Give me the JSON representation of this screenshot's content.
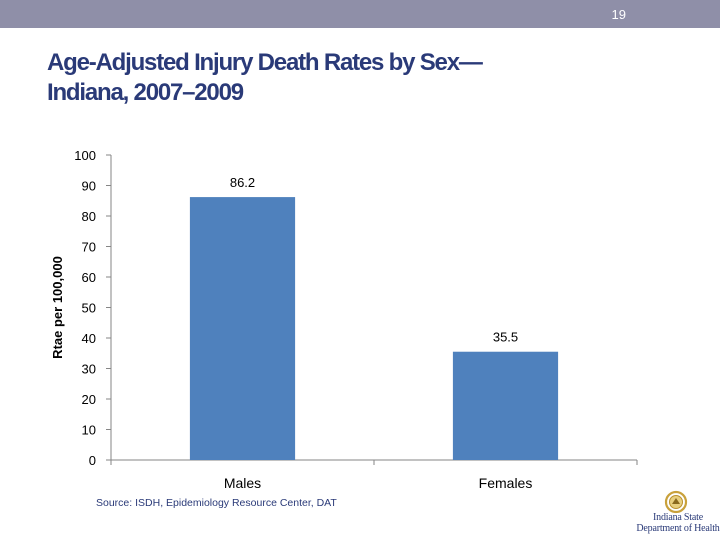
{
  "slide": {
    "number": "19",
    "title_lines": [
      "Age-Adjusted Injury Death Rates by Sex—",
      "Indiana, 2007–2009"
    ],
    "source": "Source: ISDH, Epidemiology Resource Center, DAT"
  },
  "logo": {
    "line1": "Indiana State",
    "line2": "Department of Health"
  },
  "colors": {
    "bar": "#4f81bd",
    "title": "#2a3a78",
    "topbar": "#8f8fa8"
  },
  "chart_data": {
    "type": "bar",
    "title": "Age-Adjusted Injury Death Rates by Sex—Indiana, 2007–2009",
    "categories": [
      "Males",
      "Females"
    ],
    "values": [
      86.2,
      35.5
    ],
    "value_labels": [
      "86.2",
      "35.5"
    ],
    "xlabel": "",
    "ylabel": "Rtae per 100,000",
    "ylim": [
      0,
      100
    ],
    "yticks": [
      0,
      10,
      20,
      30,
      40,
      50,
      60,
      70,
      80,
      90,
      100
    ],
    "grid": false,
    "legend": "none"
  }
}
